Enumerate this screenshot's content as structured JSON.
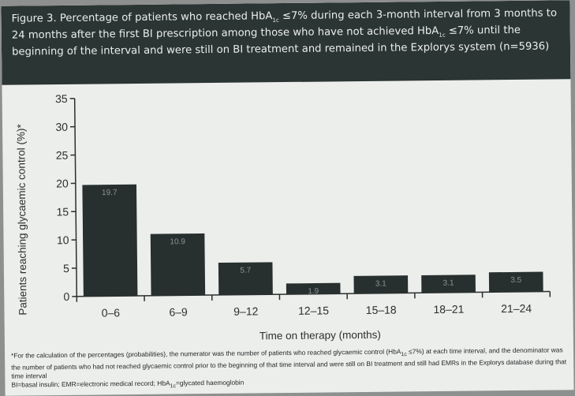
{
  "figure": {
    "title_lead": "Figure 3. Percentage of patients who reached HbA",
    "title_sub": "1c",
    "title_mid": " ≤7% during each 3-month interval from 3 months to 24 months after the first BI prescription among those who have not achieved HbA",
    "title_sub2": "1c",
    "title_tail": " ≤7% until the beginning of the interval and were still on BI treatment and remained in the Explorys system (n=5936)"
  },
  "footnote": {
    "line1_lead": "*For the calculation of the percentages (probabilities), the numerator was the number of patients who reached glycaemic control (HbA",
    "line1_sub": "1c",
    "line1_tail": " ≤7%) at each time interval, and the denominator was the number of patients who had not reached glycaemic control prior to the beginning of that time interval and were still on BI treatment and still had EMRs in the Explorys database during that time interval",
    "line2_lead": "BI=basal insulin; EMR=electronic medical record; HbA",
    "line2_sub": "1c",
    "line2_tail": "=glycated haemoglobin"
  },
  "chart_data": {
    "type": "bar",
    "categories": [
      "0–6",
      "6–9",
      "9–12",
      "12–15",
      "15–18",
      "18–21",
      "21–24"
    ],
    "values": [
      19.7,
      10.9,
      5.7,
      1.9,
      3.1,
      3.1,
      3.5
    ],
    "data_labels": [
      "19.7",
      "10.9",
      "5.7",
      "1.9",
      "3.1",
      "3.1",
      "3.5"
    ],
    "xlabel": "Time on therapy (months)",
    "ylabel": "Patients reaching glycaemic control (%)*",
    "ylim": [
      0,
      35
    ],
    "yticks": [
      0,
      5,
      10,
      15,
      20,
      25,
      30,
      35
    ],
    "grid": false,
    "legend": "none",
    "colors": {
      "bar": "#27302f",
      "bar_label": "#8c9493",
      "header_bg": "#2b3533"
    }
  }
}
